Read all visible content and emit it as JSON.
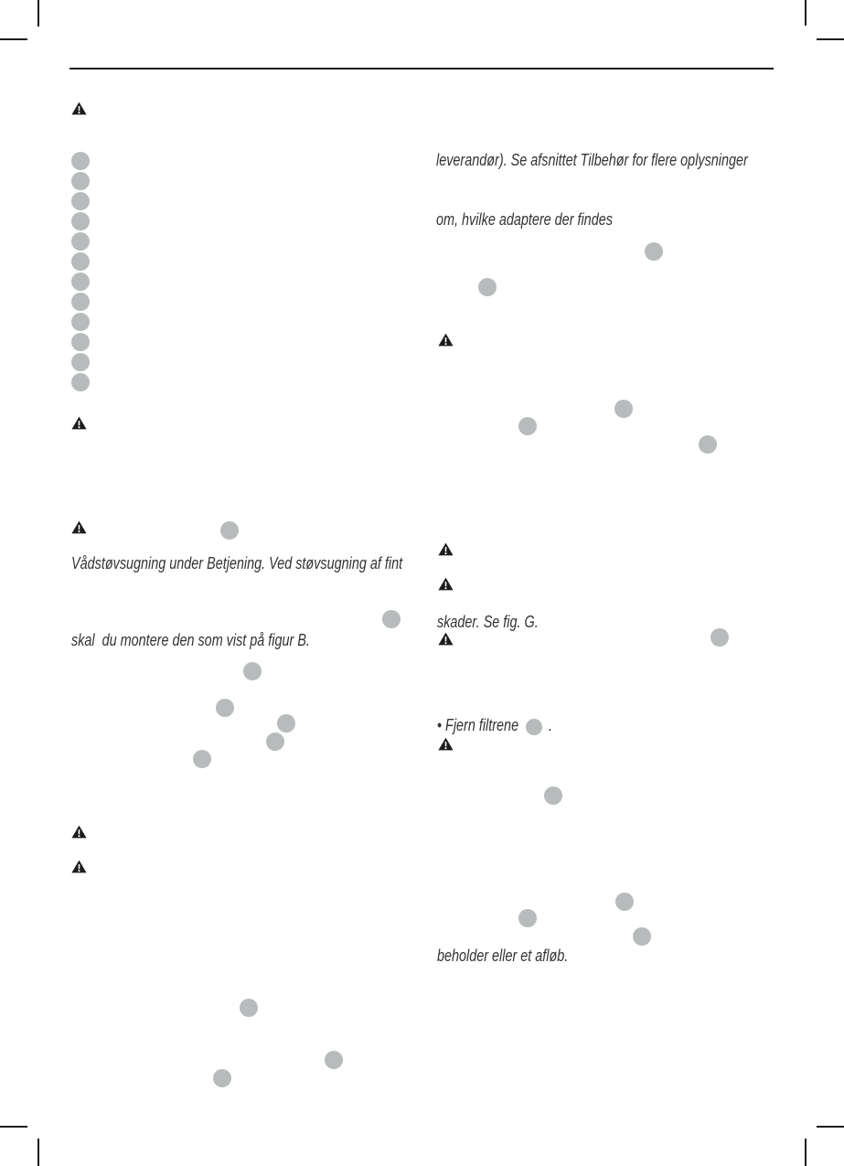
{
  "colors": {
    "paper": "#ffffff",
    "ink": "#1c1c1c",
    "text": "#333333",
    "circle": "#b7bbbc"
  },
  "icons": {
    "warning": "⚠",
    "callout": "●"
  },
  "left": {
    "para1": "Vådstøvsugning under Betjening. Ved støvsugning af fint",
    "para2": "skal  du montere den som vist på figur B."
  },
  "right": {
    "para1a": "leverandør). Se afsnittet Tilbehør for flere oplysninger",
    "para1b": "om, hvilke adaptere der findes",
    "para2": "skader. Se fig. G.",
    "bullet_pre": "• Fjern filtrene",
    "bullet_post": ".",
    "para3": "beholder eller et afløb."
  }
}
